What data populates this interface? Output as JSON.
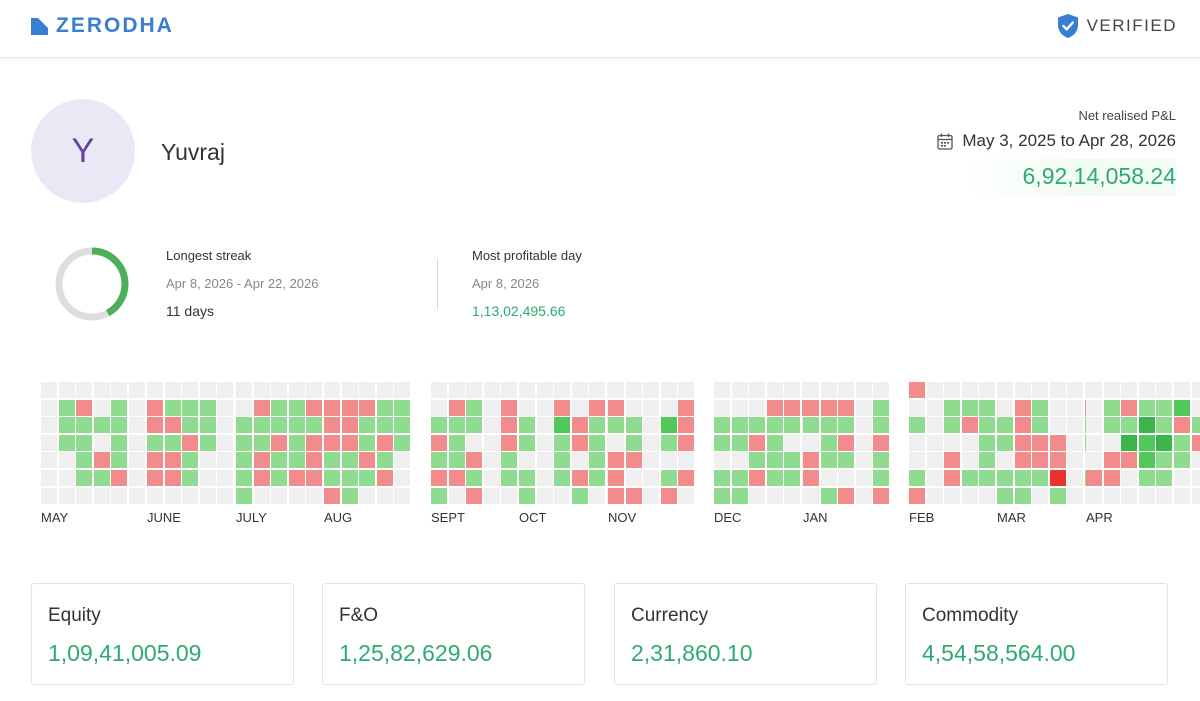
{
  "header": {
    "brand": "ZERODHA",
    "verified_label": "VERIFIED",
    "brand_color": "#387ed1",
    "logo_icon": "zerodha-logo-icon",
    "verified_icon": "shield-check-icon"
  },
  "profile": {
    "initial": "Y",
    "name": "Yuvraj"
  },
  "pnl": {
    "label": "Net realised P&L",
    "range": "May 3, 2025 to Apr 28, 2026",
    "value": "6,92,14,058.24",
    "icon": "calendar-icon"
  },
  "streak": {
    "label": "Longest streak",
    "range": "Apr 8, 2026 - Apr 22, 2026",
    "value": "11 days",
    "progress": 0.42
  },
  "profitable_day": {
    "label": "Most profitable day",
    "date": "Apr 8, 2026",
    "value": "1,13,02,495.66"
  },
  "colors": {
    "profit": "#2eaa72",
    "cell_empty": "#efefef",
    "cell_profit": "#8fdc90",
    "cell_profit_strong": "#52c75a",
    "cell_profit_max": "#3bb54a",
    "cell_loss": "#f28b8b",
    "cell_loss_max": "#e8332d"
  },
  "heatmap": {
    "legend": "0 empty, 1 profit, 2 loss, 3 strong profit, 4 strongest profit, 5 strongest loss",
    "months": [
      {
        "label": "MAY",
        "weeks": [
          "0000000",
          "0111000",
          "0211110",
          "0010210",
          "0111120",
          "0000000"
        ]
      },
      {
        "label": "JUNE",
        "weeks": [
          "0221220",
          "0121220",
          "0112110",
          "0111000",
          "0000000"
        ]
      },
      {
        "label": "JULY",
        "weeks": [
          "0011111",
          "0211220",
          "0112110",
          "0111120",
          "0212220",
          "1000000"
        ]
      },
      {
        "label": "AUG",
        "weeks": [
          "0222112",
          "0222111",
          "0211210",
          "0112120",
          "0111000"
        ]
      },
      {
        "label": "SEPT",
        "weeks": [
          "0012121",
          "0211120",
          "0110212",
          "0000000",
          "0222110"
        ]
      },
      {
        "label": "OCT",
        "weeks": [
          "0011011",
          "0000000",
          "0231110",
          "0022021",
          "0211110",
          "0000000"
        ]
      },
      {
        "label": "NOV",
        "weeks": [
          "0210222",
          "0011202",
          "0000000",
          "0031012",
          "0222020"
        ]
      },
      {
        "label": "DEC",
        "weeks": [
          "0011011",
          "0011011",
          "0012120",
          "0211110",
          "0210110",
          "0200000"
        ]
      },
      {
        "label": "JAN",
        "weeks": [
          "0210220",
          "0211101",
          "0212102",
          "0000000",
          "0112112"
        ]
      },
      {
        "label": "FEB",
        "weeks": [
          "2010012",
          "0000000",
          "0110220",
          "0120010",
          "0111110",
          "0201210",
          "0011100"
        ]
      },
      {
        "label": "MAR",
        "weeks": [
          "0011011",
          "0222211",
          "0112210",
          "0002251",
          "0000000",
          "0211010"
        ]
      },
      {
        "label": "APR",
        "weeks": [
          "0000020",
          "0110220",
          "0214200",
          "0143310",
          "0114110",
          "0321100",
          "0012000"
        ]
      }
    ]
  },
  "segments": [
    {
      "title": "Equity",
      "value": "1,09,41,005.09"
    },
    {
      "title": "F&O",
      "value": "1,25,82,629.06"
    },
    {
      "title": "Currency",
      "value": "2,31,860.10"
    },
    {
      "title": "Commodity",
      "value": "4,54,58,564.00"
    }
  ]
}
